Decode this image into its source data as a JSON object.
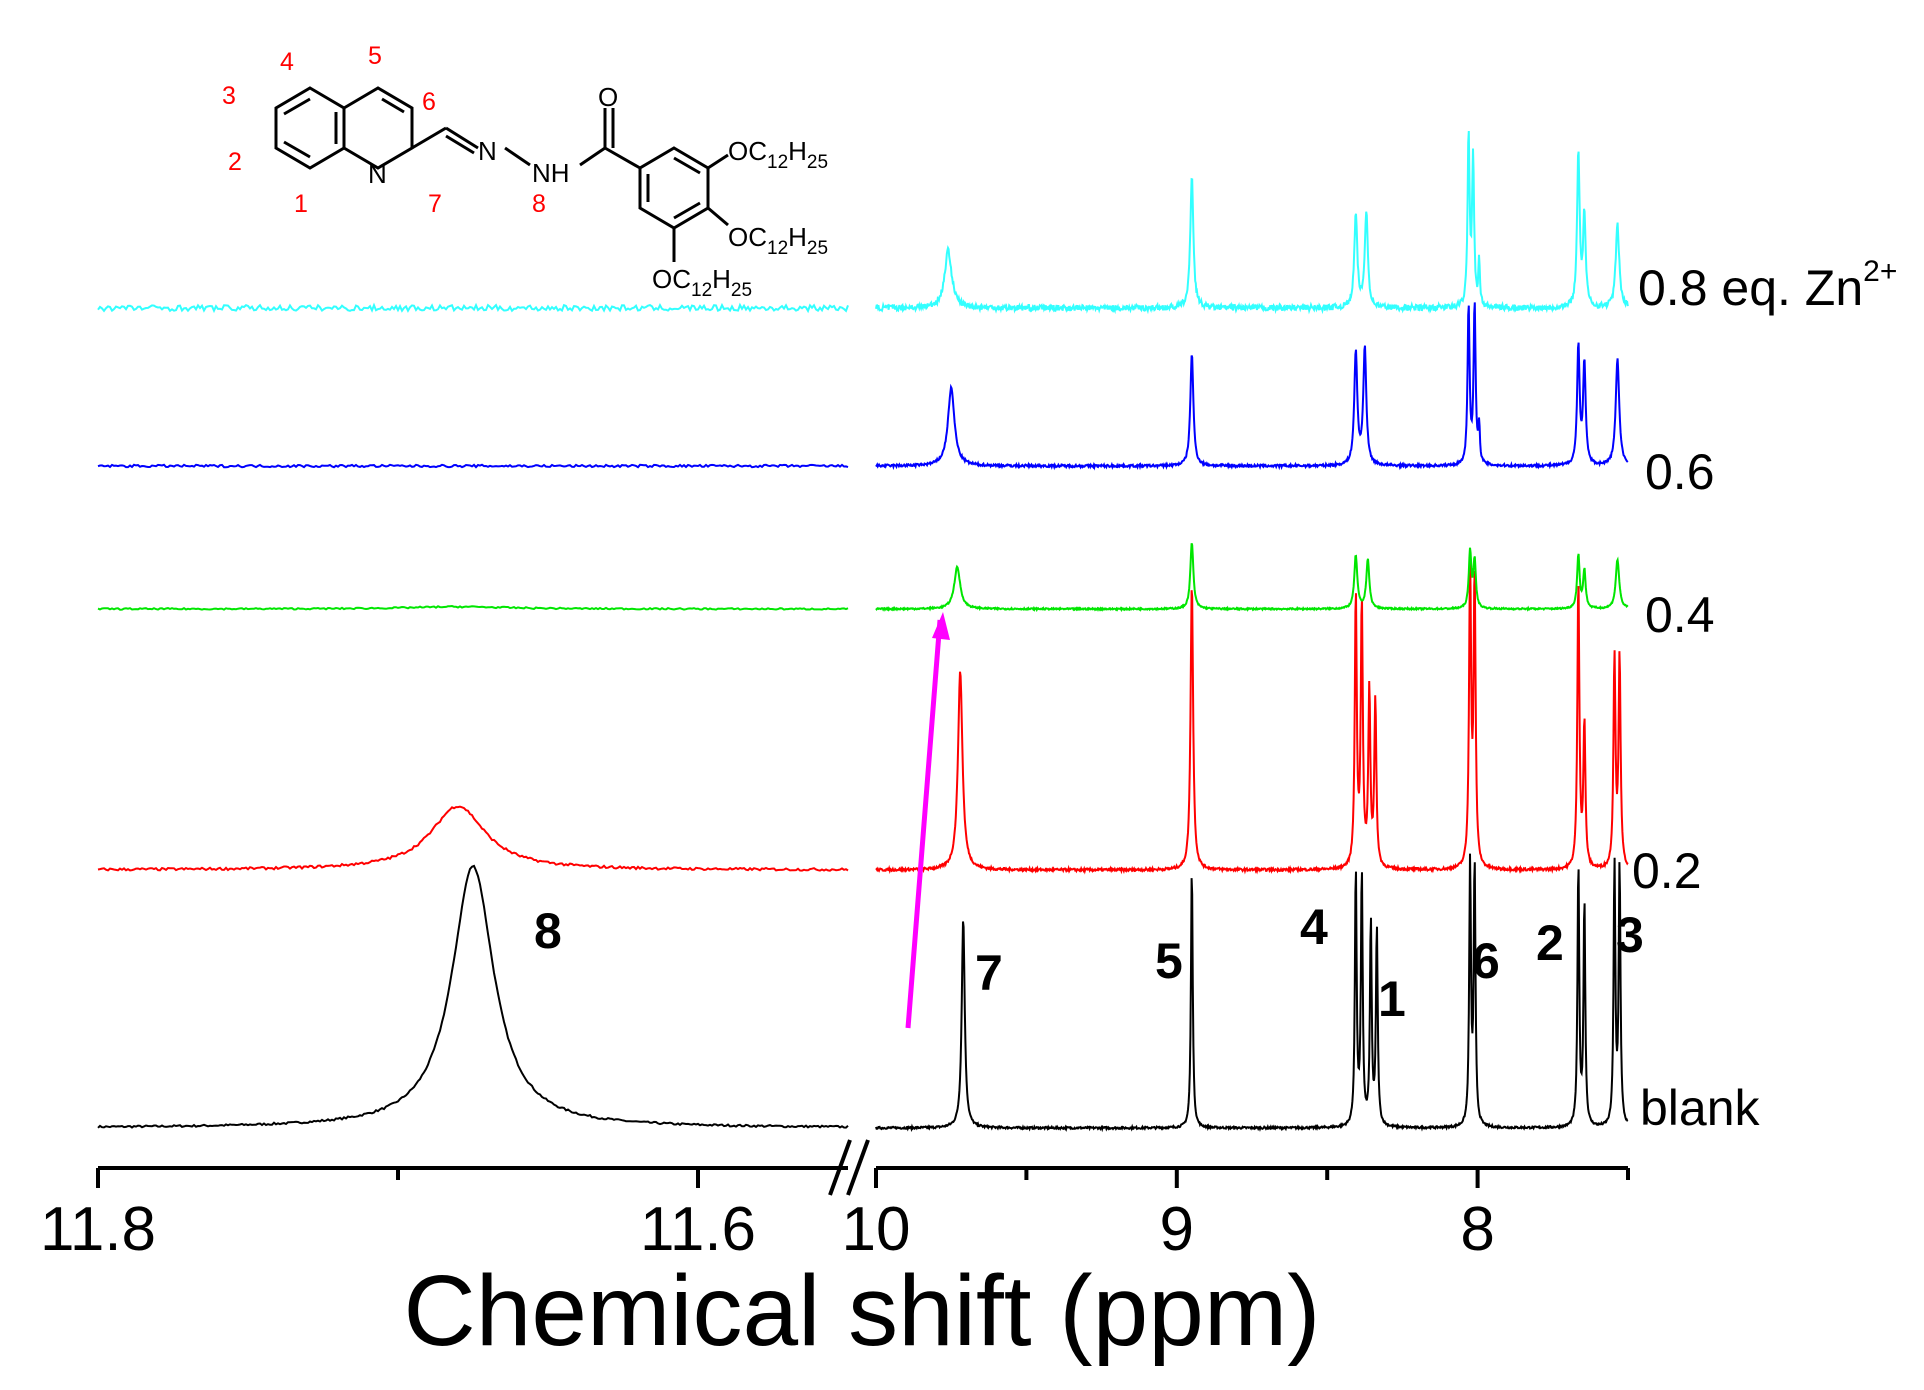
{
  "chart_data": {
    "type": "line",
    "xlabel": "Chemical shift (ppm)",
    "x_axis": {
      "reversed": true,
      "broken": true,
      "segments": [
        {
          "from": 11.8,
          "to": 11.55,
          "ticks": [
            11.8,
            11.6
          ],
          "tick_labels": [
            "11.8",
            "11.6"
          ],
          "minor_ticks": [
            11.7
          ]
        },
        {
          "from": 10.0,
          "to": 7.5,
          "ticks": [
            10.0,
            9.0,
            8.0
          ],
          "tick_labels": [
            "10",
            "9",
            "8"
          ],
          "minor_ticks": [
            9.5,
            8.5,
            7.5
          ]
        }
      ]
    },
    "series": [
      {
        "name": "blank",
        "color": "#000000",
        "noise": 0.008,
        "peaks": [
          {
            "shift": 11.675,
            "height": 1.0,
            "width": 0.0085,
            "label": "8"
          },
          {
            "shift": 9.71,
            "height": 0.8,
            "width": 0.006,
            "label": "7"
          },
          {
            "shift": 8.95,
            "height": 1.0,
            "width": 0.0035,
            "label": "5"
          },
          {
            "shift": 8.405,
            "height": 0.98,
            "width": 0.0035,
            "label": "4"
          },
          {
            "shift": 8.385,
            "height": 0.97,
            "width": 0.0035
          },
          {
            "shift": 8.355,
            "height": 0.78,
            "width": 0.0035,
            "label": "1"
          },
          {
            "shift": 8.335,
            "height": 0.76,
            "width": 0.0035
          },
          {
            "shift": 8.025,
            "height": 1.0,
            "width": 0.0035,
            "label": "6"
          },
          {
            "shift": 8.01,
            "height": 1.0,
            "width": 0.0035
          },
          {
            "shift": 7.665,
            "height": 1.0,
            "width": 0.0035,
            "label": "2"
          },
          {
            "shift": 7.645,
            "height": 0.86,
            "width": 0.0035
          },
          {
            "shift": 7.545,
            "height": 1.0,
            "width": 0.0035,
            "label": "3"
          },
          {
            "shift": 7.528,
            "height": 1.0,
            "width": 0.0035
          }
        ]
      },
      {
        "name": "0.2",
        "color": "#ff0000",
        "noise": 0.008,
        "peaks": [
          {
            "shift": 11.68,
            "height": 0.2,
            "width": 0.011
          },
          {
            "shift": 9.72,
            "height": 0.62,
            "width": 0.009
          },
          {
            "shift": 8.95,
            "height": 0.9,
            "width": 0.005
          },
          {
            "shift": 8.405,
            "height": 0.85,
            "width": 0.004
          },
          {
            "shift": 8.385,
            "height": 0.82,
            "width": 0.004
          },
          {
            "shift": 8.36,
            "height": 0.55,
            "width": 0.004
          },
          {
            "shift": 8.34,
            "height": 0.52,
            "width": 0.004
          },
          {
            "shift": 8.025,
            "height": 0.95,
            "width": 0.004
          },
          {
            "shift": 8.01,
            "height": 0.9,
            "width": 0.004
          },
          {
            "shift": 7.665,
            "height": 0.9,
            "width": 0.004
          },
          {
            "shift": 7.645,
            "height": 0.45,
            "width": 0.004
          },
          {
            "shift": 7.545,
            "height": 0.66,
            "width": 0.004
          },
          {
            "shift": 7.528,
            "height": 0.66,
            "width": 0.004
          }
        ]
      },
      {
        "name": "0.4",
        "color": "#00e600",
        "noise": 0.008,
        "peaks": [
          {
            "shift": 11.68,
            "height": 0.012,
            "width": 0.02
          },
          {
            "shift": 9.73,
            "height": 0.22,
            "width": 0.012
          },
          {
            "shift": 8.95,
            "height": 0.35,
            "width": 0.006
          },
          {
            "shift": 8.405,
            "height": 0.28,
            "width": 0.006
          },
          {
            "shift": 8.365,
            "height": 0.26,
            "width": 0.006
          },
          {
            "shift": 8.025,
            "height": 0.3,
            "width": 0.005
          },
          {
            "shift": 8.01,
            "height": 0.25,
            "width": 0.005
          },
          {
            "shift": 7.665,
            "height": 0.28,
            "width": 0.005
          },
          {
            "shift": 7.645,
            "height": 0.2,
            "width": 0.005
          },
          {
            "shift": 7.535,
            "height": 0.26,
            "width": 0.007
          }
        ]
      },
      {
        "name": "0.6",
        "color": "#0000ff",
        "noise": 0.012,
        "peaks": [
          {
            "shift": 9.75,
            "height": 0.38,
            "width": 0.013
          },
          {
            "shift": 8.95,
            "height": 0.55,
            "width": 0.006
          },
          {
            "shift": 8.405,
            "height": 0.55,
            "width": 0.006
          },
          {
            "shift": 8.375,
            "height": 0.57,
            "width": 0.006
          },
          {
            "shift": 8.03,
            "height": 0.78,
            "width": 0.004
          },
          {
            "shift": 8.01,
            "height": 0.78,
            "width": 0.004
          },
          {
            "shift": 7.995,
            "height": 0.18,
            "width": 0.003
          },
          {
            "shift": 7.665,
            "height": 0.58,
            "width": 0.005
          },
          {
            "shift": 7.645,
            "height": 0.5,
            "width": 0.005
          },
          {
            "shift": 7.535,
            "height": 0.52,
            "width": 0.007
          }
        ]
      },
      {
        "name": "0.8 eq. Zn2+",
        "color": "#33ffff",
        "noise": 0.025,
        "peaks": [
          {
            "shift": 9.76,
            "height": 0.25,
            "width": 0.014
          },
          {
            "shift": 8.95,
            "height": 0.58,
            "width": 0.006
          },
          {
            "shift": 8.405,
            "height": 0.4,
            "width": 0.006
          },
          {
            "shift": 8.37,
            "height": 0.42,
            "width": 0.006
          },
          {
            "shift": 8.03,
            "height": 0.75,
            "width": 0.004
          },
          {
            "shift": 8.015,
            "height": 0.65,
            "width": 0.004
          },
          {
            "shift": 7.995,
            "height": 0.2,
            "width": 0.003
          },
          {
            "shift": 7.665,
            "height": 0.68,
            "width": 0.005
          },
          {
            "shift": 7.645,
            "height": 0.4,
            "width": 0.005
          },
          {
            "shift": 7.535,
            "height": 0.36,
            "width": 0.007
          }
        ]
      }
    ],
    "spectrum_labels": [
      "blank",
      "0.2",
      "0.4",
      "0.6",
      "0.8 eq. Zn"
    ],
    "spectrum_label_superscript": "2+",
    "annotations": {
      "arrow_color": "#ff00ff",
      "peak_numbers": [
        "8",
        "7",
        "5",
        "4",
        "1",
        "6",
        "2",
        "3"
      ]
    }
  },
  "structure": {
    "position_numbers": [
      "1",
      "2",
      "3",
      "4",
      "5",
      "6",
      "7",
      "8"
    ],
    "atoms": {
      "N_ring": "N",
      "N_imine": "N",
      "NH": "NH",
      "O": "O",
      "OC": "OC",
      "sub12": "12",
      "H": "H",
      "sub25": "25"
    }
  }
}
